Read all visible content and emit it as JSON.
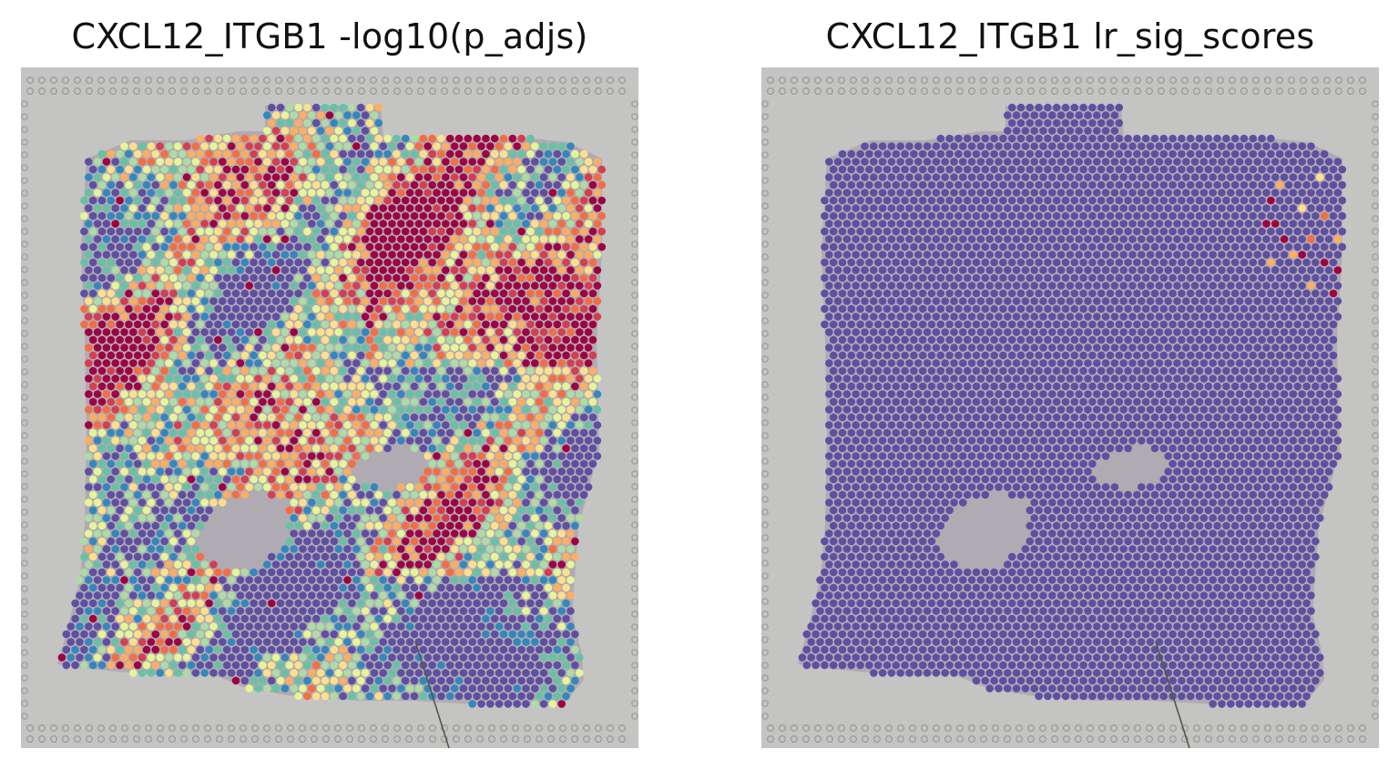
{
  "figure": {
    "panels": [
      {
        "id": "left",
        "title": "CXCL12_ITGB1 -log10(p_adjs)",
        "colormap": "Spectral_r",
        "hot_fraction": 0.62
      },
      {
        "id": "right",
        "title": "CXCL12_ITGB1 lr_sig_scores",
        "colormap": "Spectral_r",
        "hot_fraction": 0.004
      }
    ],
    "colors": {
      "background_slide": "#c4c4c2",
      "fiducial_dot": "#9a9a98",
      "low": "#5e4fa2",
      "mid_blue": "#3288bd",
      "teal": "#66c2a5",
      "light_green": "#abdda4",
      "pale_yellow": "#e6f598",
      "cream": "#fee08b",
      "orange": "#fdae61",
      "red_orange": "#f46d43",
      "red": "#d53e4f",
      "dark_red": "#9e0142"
    }
  }
}
